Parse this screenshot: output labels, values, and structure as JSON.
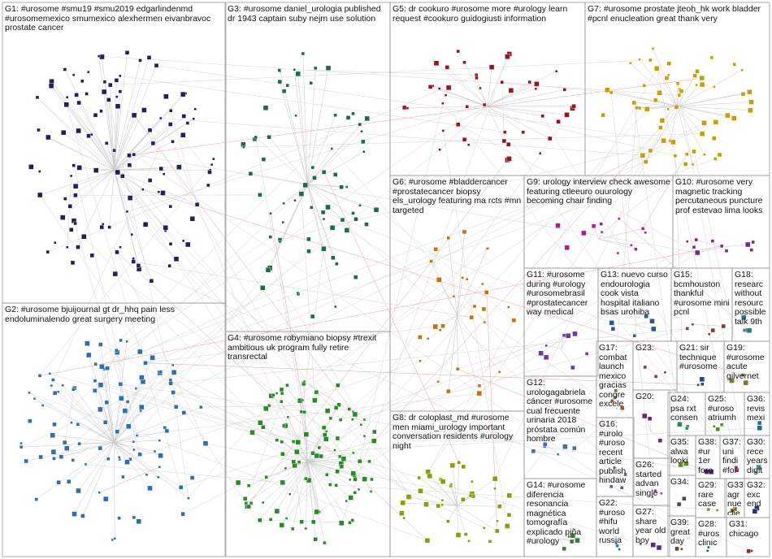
{
  "title": "",
  "groups": [
    {
      "id": "G1",
      "label": "G1: #urosome #smu19 #smu2019 edgarlindenmd #urosomemexico smumexico alexhermen eivanbravoc prostate cancer",
      "color": "#20205a"
    },
    {
      "id": "G2",
      "label": "G2: #urosome bjuijournal gt dr_hhq pain less endoluminalendo great surgery meeting",
      "color": "#2f6fb0"
    },
    {
      "id": "G3",
      "label": "G3: #urosome daniel_urologia published dr 1943 captain suby nejm use solution",
      "color": "#1e6b45"
    },
    {
      "id": "G4",
      "label": "G4: #urosome robymiano biopsy #trexit ambitious uk program fully retire transrectal",
      "color": "#2a8a2a"
    },
    {
      "id": "G5",
      "label": "G5: dr cookuro #urosome more #urology learn request #cookuro guidogiusti information",
      "color": "#a01020"
    },
    {
      "id": "G6",
      "label": "G6: #urosome #bladdercancer #prostatecancer biopsy els_urology featuring ma rcts #mn targeted",
      "color": "#c8720a"
    },
    {
      "id": "G7",
      "label": "G7: #urosome prostate jteoh_hk work bladder #pcnl enucleation great thank very",
      "color": "#c9a000"
    },
    {
      "id": "G8",
      "label": "G8: dr coloplast_md #urosome men miami_urology important conversation residents #urology night",
      "color": "#8aa000"
    },
    {
      "id": "G9",
      "label": "G9: urology interview check awesome featuring ctleeuro ouurology becoming chair finding",
      "color": "#b0208a"
    },
    {
      "id": "G10",
      "label": "G10: #urosome very magnetic tracking percutaneous puncture prof estevao lima looks",
      "color": "#7a2a8a"
    },
    {
      "id": "G11",
      "label": "G11: #urosome during #urology #urosomebrasil #prostatecancer way medical",
      "color": "#6a3aa0"
    },
    {
      "id": "G12",
      "label": "G12: urologagabriela cáncer #urosome cual frecuente urinaria 2018 próstata común hombre",
      "color": "#4a6ab0"
    },
    {
      "id": "G13",
      "label": "G13: nuevo curso endourologia cook vista hospital italiano bsas urohiba",
      "color": "#2a5a90"
    },
    {
      "id": "G14",
      "label": "G14: #urosome diferencia resonancia magnética tomografía explicado piña #urology",
      "color": "#3a7a3a"
    },
    {
      "id": "G15",
      "label": "G15: bcmhouston thankful #urosome mini pcnl",
      "color": "#8a3a3a"
    },
    {
      "id": "G16",
      "label": "G16: #urolo #uroso recent article publish hindaw",
      "color": "#5a5a9a"
    },
    {
      "id": "G17",
      "label": "G17: combat launch mexico gracias congre excele",
      "color": "#9a5a2a"
    },
    {
      "id": "G18",
      "label": "G18: researc without resourc possible talk 9th",
      "color": "#2a7a7a"
    },
    {
      "id": "G19",
      "label": "G19: #urosome acute gilvernet",
      "color": "#7a7a2a"
    },
    {
      "id": "G20",
      "label": "G20:",
      "color": "#6a2a6a"
    },
    {
      "id": "G21",
      "label": "G21: sir technique #urosome",
      "color": "#2a4a7a"
    },
    {
      "id": "G22",
      "label": "G22: #uroso #hifu world russia",
      "color": "#3a6a9a"
    },
    {
      "id": "G23",
      "label": "G23:",
      "color": "#9a2a5a"
    },
    {
      "id": "G24",
      "label": "G24: psa rxt consen",
      "color": "#2a8a5a"
    },
    {
      "id": "G25",
      "label": "G25: #uroso atriumh",
      "color": "#5a8a2a"
    },
    {
      "id": "G26",
      "label": "G26: started advan single",
      "color": "#8a5a8a"
    },
    {
      "id": "G27",
      "label": "G27: share year old boy",
      "color": "#5a2a8a"
    },
    {
      "id": "G28",
      "label": "G28: #uros clinic",
      "color": "#2a5a5a"
    },
    {
      "id": "G29",
      "label": "G29: rare case",
      "color": "#8a8a5a"
    },
    {
      "id": "G30",
      "label": "G30: rece years digit",
      "color": "#5a8a8a"
    },
    {
      "id": "G31",
      "label": "G31: chicago",
      "color": "#8a2a2a"
    },
    {
      "id": "G32",
      "label": "G32: exc end",
      "color": "#2a2a8a"
    },
    {
      "id": "G33",
      "label": "G33: agr nue clie",
      "color": "#8a6a2a"
    },
    {
      "id": "G34",
      "label": "G34:",
      "color": "#4a4a4a"
    },
    {
      "id": "G35",
      "label": "G35: alwa looki",
      "color": "#6a8a2a"
    },
    {
      "id": "G36",
      "label": "G36: revis mexi",
      "color": "#2a6a8a"
    },
    {
      "id": "G37",
      "label": "G37: uni findi #for",
      "color": "#8a2a6a"
    },
    {
      "id": "G38",
      "label": "G38: #ur 1er foro",
      "color": "#4a2a6a"
    },
    {
      "id": "G39",
      "label": "G39: great day",
      "color": "#6a4a2a"
    }
  ]
}
